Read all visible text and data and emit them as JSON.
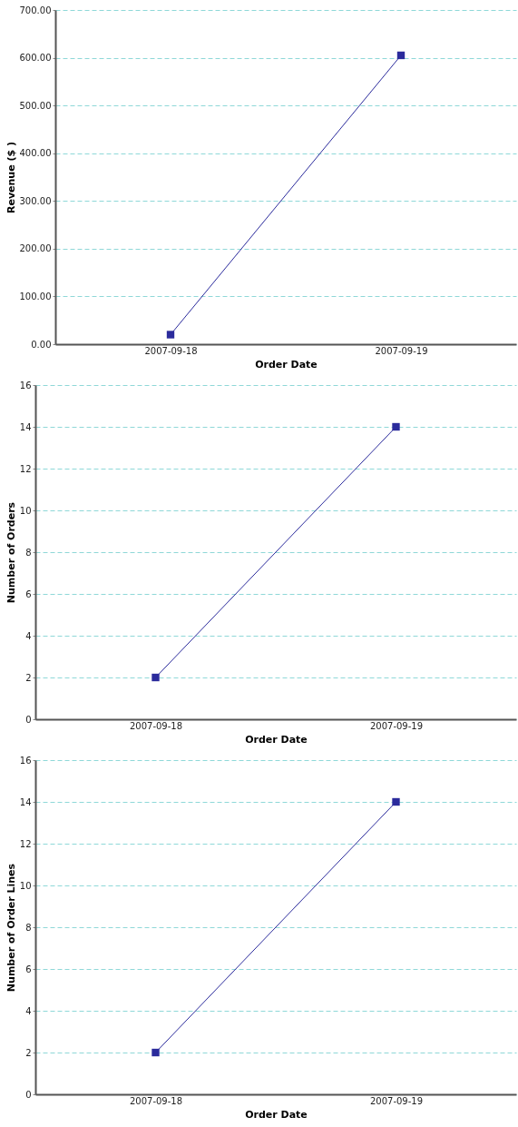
{
  "chart_data": [
    {
      "type": "line",
      "xlabel": "Order Date",
      "ylabel": "Revenue ($ )",
      "categories": [
        "2007-09-18",
        "2007-09-19"
      ],
      "series": [
        {
          "color": "#2b2b9c",
          "values": [
            20,
            605
          ]
        }
      ],
      "ylim": [
        0,
        700
      ],
      "yticks": [
        {
          "value": 0,
          "label": "0.00"
        },
        {
          "value": 100,
          "label": "100.00"
        },
        {
          "value": 200,
          "label": "200.00"
        },
        {
          "value": 300,
          "label": "300.00"
        },
        {
          "value": 400,
          "label": "400.00"
        },
        {
          "value": 500,
          "label": "500.00"
        },
        {
          "value": 600,
          "label": "600.00"
        },
        {
          "value": 700,
          "label": "700.00"
        }
      ],
      "grid": "y",
      "marker": "square"
    },
    {
      "type": "line",
      "xlabel": "Order Date",
      "ylabel": "Number of Orders",
      "categories": [
        "2007-09-18",
        "2007-09-19"
      ],
      "series": [
        {
          "color": "#2b2b9c",
          "values": [
            2,
            14
          ]
        }
      ],
      "ylim": [
        0,
        16
      ],
      "yticks": [
        0,
        2,
        4,
        6,
        8,
        10,
        12,
        14,
        16
      ],
      "grid": "y",
      "marker": "square"
    },
    {
      "type": "line",
      "xlabel": "Order Date",
      "ylabel": "Number of Order Lines",
      "categories": [
        "2007-09-18",
        "2007-09-19"
      ],
      "series": [
        {
          "color": "#2b2b9c",
          "values": [
            2,
            14
          ]
        }
      ],
      "ylim": [
        0,
        16
      ],
      "yticks": [
        0,
        2,
        4,
        6,
        8,
        10,
        12,
        14,
        16
      ],
      "grid": "y",
      "marker": "square"
    }
  ]
}
